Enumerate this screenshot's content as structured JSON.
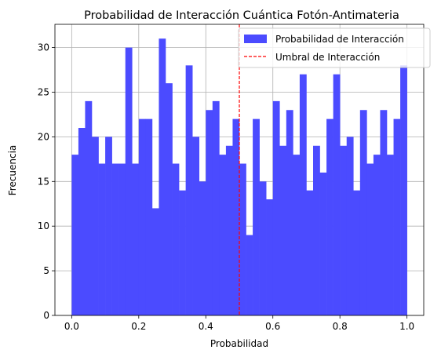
{
  "chart_data": {
    "type": "bar",
    "title": "Probabilidad de Interacción Cuántica Fotón-Antimateria",
    "xlabel": "Probabilidad",
    "ylabel": "Frecuencia",
    "xlim": [
      -0.05,
      1.05
    ],
    "ylim": [
      0,
      32.6
    ],
    "xticks": [
      0.0,
      0.2,
      0.4,
      0.6,
      0.8,
      1.0
    ],
    "xtick_labels": [
      "0.0",
      "0.2",
      "0.4",
      "0.6",
      "0.8",
      "1.0"
    ],
    "yticks": [
      0,
      5,
      10,
      15,
      20,
      25,
      30
    ],
    "ytick_labels": [
      "0",
      "5",
      "10",
      "15",
      "20",
      "25",
      "30"
    ],
    "grid": true,
    "legend_position": "top-right",
    "bin_range": [
      0.0,
      1.0
    ],
    "bin_count": 50,
    "values": [
      18,
      21,
      24,
      20,
      17,
      20,
      17,
      17,
      30,
      17,
      22,
      22,
      12,
      31,
      26,
      17,
      14,
      28,
      20,
      15,
      23,
      24,
      18,
      19,
      22,
      17,
      9,
      22,
      15,
      13,
      24,
      19,
      23,
      18,
      27,
      14,
      19,
      16,
      22,
      27,
      19,
      20,
      14,
      23,
      17,
      18,
      23,
      18,
      22,
      28
    ],
    "series": [
      {
        "name": "Probabilidad de Interacción",
        "color": "#4b4bff"
      }
    ],
    "threshold": {
      "name": "Umbral de Interacción",
      "x": 0.5,
      "color": "#ff0000"
    }
  }
}
